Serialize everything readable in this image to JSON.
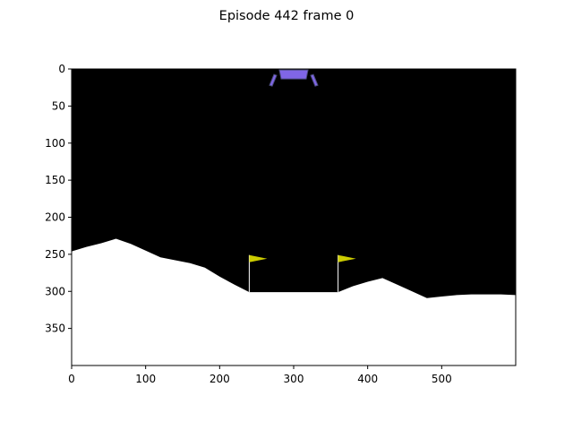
{
  "figure": {
    "title": "Episode 442 frame 0"
  },
  "axes": {
    "x_ticks": [
      "0",
      "100",
      "200",
      "300",
      "400",
      "500"
    ],
    "y_ticks": [
      "0",
      "50",
      "100",
      "150",
      "200",
      "250",
      "300",
      "350"
    ],
    "xlim": [
      0,
      600
    ],
    "ylim": [
      400,
      0
    ]
  },
  "scene": {
    "background_color": "#000000",
    "terrain_color": "#ffffff",
    "flag_color": "#cccc00",
    "lander_color": "#8066e6",
    "terrain_profile": [
      [
        0,
        246
      ],
      [
        20,
        240
      ],
      [
        40,
        235
      ],
      [
        60,
        229
      ],
      [
        80,
        236
      ],
      [
        100,
        245
      ],
      [
        120,
        254
      ],
      [
        140,
        258
      ],
      [
        160,
        262
      ],
      [
        180,
        268
      ],
      [
        200,
        280
      ],
      [
        220,
        291
      ],
      [
        240,
        301
      ],
      [
        360,
        301
      ],
      [
        380,
        293
      ],
      [
        400,
        287
      ],
      [
        420,
        282
      ],
      [
        440,
        291
      ],
      [
        460,
        300
      ],
      [
        480,
        309
      ],
      [
        500,
        307
      ],
      [
        520,
        305
      ],
      [
        540,
        304
      ],
      [
        560,
        304
      ],
      [
        580,
        304
      ],
      [
        600,
        305
      ]
    ],
    "flags": [
      {
        "x": 240,
        "top": 251,
        "bottom": 301
      },
      {
        "x": 360,
        "top": 251,
        "bottom": 301
      }
    ],
    "lander": {
      "x": 300,
      "y": 5
    }
  }
}
